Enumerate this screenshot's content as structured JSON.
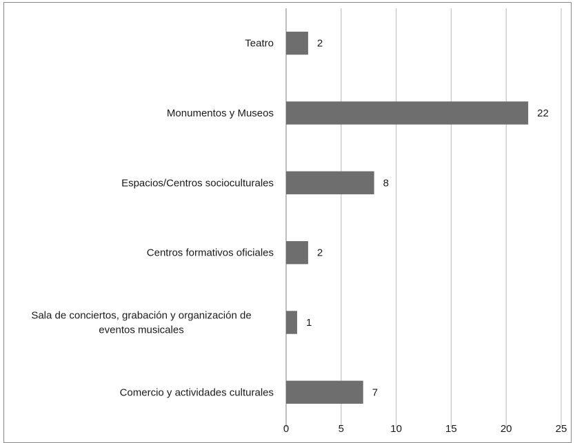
{
  "chart_data": {
    "type": "bar",
    "orientation": "horizontal",
    "title": "",
    "xlabel": "",
    "ylabel": "",
    "categories": [
      "Teatro",
      "Monumentos y Museos",
      "Espacios/Centros socioculturales",
      "Centros formativos oficiales",
      "Sala de conciertos, grabación y organización de eventos musicales",
      "Comercio y actividades culturales"
    ],
    "category_label_lines": [
      [
        "Teatro"
      ],
      [
        "Monumentos y Museos"
      ],
      [
        "Espacios/Centros socioculturales"
      ],
      [
        "Centros formativos oficiales"
      ],
      [
        "Sala de conciertos, grabación y organización de",
        "eventos musicales"
      ],
      [
        "Comercio y actividades culturales"
      ]
    ],
    "values": [
      2,
      22,
      8,
      2,
      1,
      7
    ],
    "data_labels": [
      "2",
      "22",
      "8",
      "2",
      "1",
      "7"
    ],
    "xlim": [
      0,
      25
    ],
    "x_ticks": [
      0,
      5,
      10,
      15,
      20,
      25
    ],
    "x_tick_labels": [
      "0",
      "5",
      "10",
      "15",
      "20",
      "25"
    ],
    "gridlines": true,
    "legend": "none",
    "colors": {
      "bar": "#6e6e6e",
      "grid": "#c8c8c8",
      "axis": "#9a9a9a",
      "text": "#1a1a1a"
    }
  }
}
